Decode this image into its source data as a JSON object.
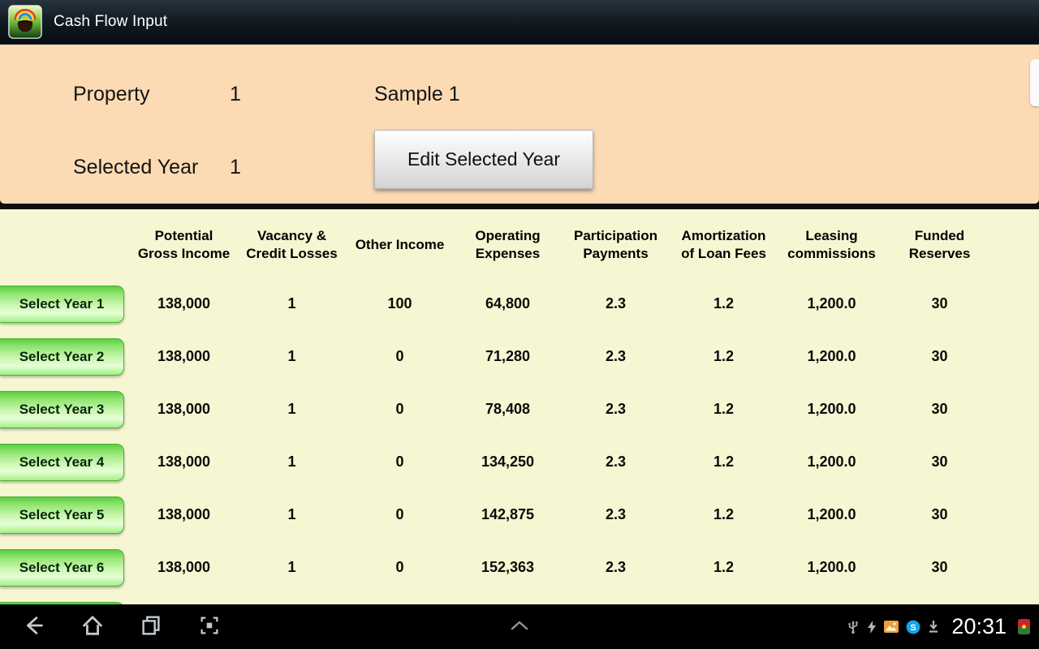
{
  "app_bar": {
    "title": "Cash Flow Input",
    "app_icon": "pot-of-gold-rainbow-icon"
  },
  "property_panel": {
    "property_label": "Property",
    "property_number": "1",
    "property_name": "Sample 1",
    "selected_year_label": "Selected Year",
    "selected_year_value": "1",
    "edit_button_label": "Edit Selected Year"
  },
  "table": {
    "columns": [
      {
        "label": "Potential\nGross Income"
      },
      {
        "label": "Vacancy &\nCredit Losses"
      },
      {
        "label": "Other Income"
      },
      {
        "label": "Operating\nExpenses"
      },
      {
        "label": "Participation\nPayments"
      },
      {
        "label": "Amortization\nof Loan Fees"
      },
      {
        "label": "Leasing\ncommissions"
      },
      {
        "label": "Funded\nReserves"
      }
    ],
    "rows": [
      {
        "button_label": "Select Year 1",
        "values": [
          "138,000",
          "1",
          "100",
          "64,800",
          "2.3",
          "1.2",
          "1,200.0",
          "30"
        ]
      },
      {
        "button_label": "Select Year 2",
        "values": [
          "138,000",
          "1",
          "0",
          "71,280",
          "2.3",
          "1.2",
          "1,200.0",
          "30"
        ]
      },
      {
        "button_label": "Select Year 3",
        "values": [
          "138,000",
          "1",
          "0",
          "78,408",
          "2.3",
          "1.2",
          "1,200.0",
          "30"
        ]
      },
      {
        "button_label": "Select Year 4",
        "values": [
          "138,000",
          "1",
          "0",
          "134,250",
          "2.3",
          "1.2",
          "1,200.0",
          "30"
        ]
      },
      {
        "button_label": "Select Year 5",
        "values": [
          "138,000",
          "1",
          "0",
          "142,875",
          "2.3",
          "1.2",
          "1,200.0",
          "30"
        ]
      },
      {
        "button_label": "Select Year 6",
        "values": [
          "138,000",
          "1",
          "0",
          "152,363",
          "2.3",
          "1.2",
          "1,200.0",
          "30"
        ]
      }
    ]
  },
  "nav_bar": {
    "time": "20:31",
    "nav_icons": [
      "back-icon",
      "home-icon",
      "recent-apps-icon",
      "screenshot-icon",
      "hide-bar-caret-icon"
    ],
    "status_icons": [
      "usb-icon",
      "charging-icon",
      "gallery-icon",
      "skype-icon",
      "download-icon",
      "notification-app-icon"
    ]
  },
  "colors": {
    "action_bar": "#0d161e",
    "panel_peach": "#fbdab4",
    "table_background": "#f6f6d2",
    "select_button_green": "#6fdc52",
    "status_text": "#ffffff"
  }
}
